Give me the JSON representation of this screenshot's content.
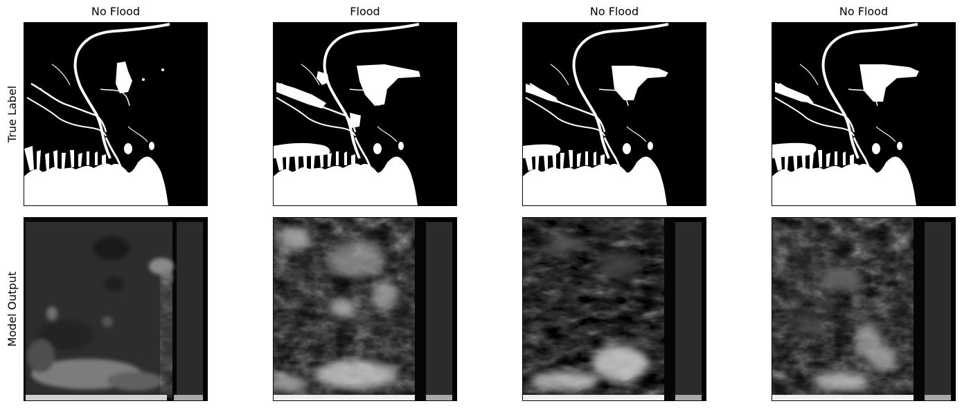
{
  "columns": [
    {
      "title": "No Flood"
    },
    {
      "title": "Flood"
    },
    {
      "title": "No Flood"
    },
    {
      "title": "No Flood"
    }
  ],
  "rows": [
    {
      "label": "True Label"
    },
    {
      "label": "Model Output"
    }
  ],
  "colors": {
    "background": "#ffffff",
    "mask_land": "#000000",
    "mask_water": "#ffffff",
    "output_pad": "#2c2c2c",
    "output_bottom_bar": "#a8a8a8"
  }
}
